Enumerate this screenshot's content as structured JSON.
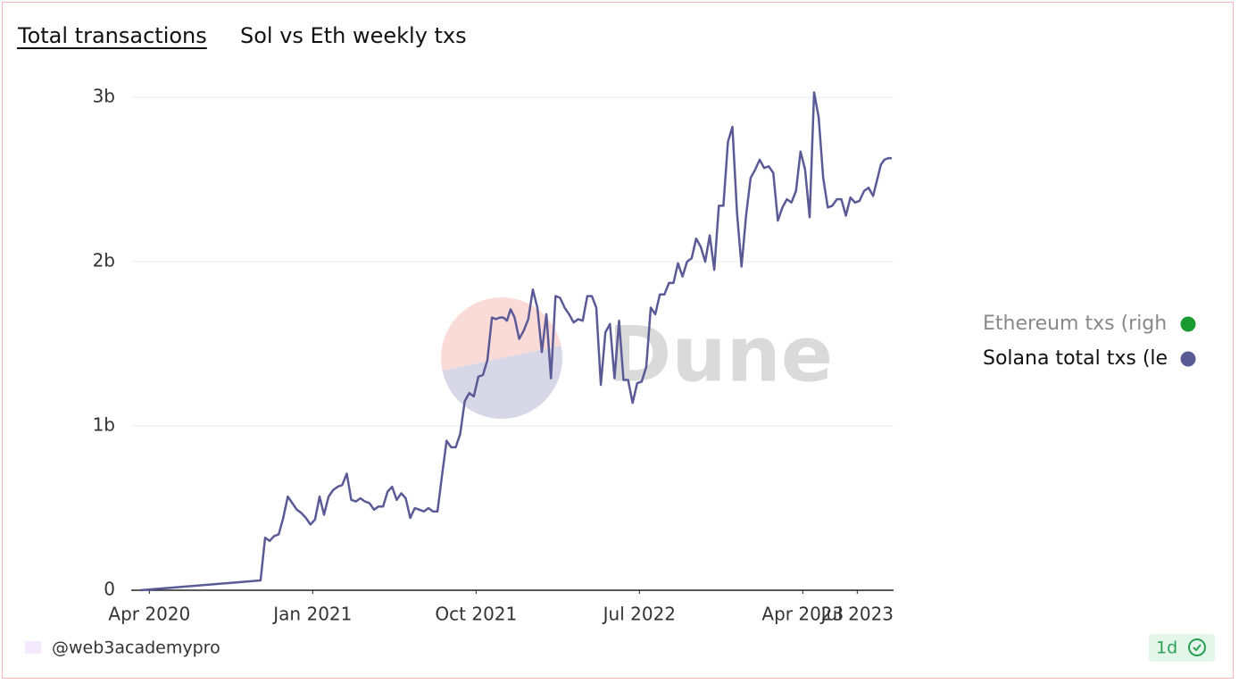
{
  "chart_data": {
    "type": "line",
    "title": "Total transactions",
    "subtitle": "Sol vs Eth weekly txs",
    "watermark": "Dune",
    "x": [
      "2020-03",
      "2020-10",
      "2020-10",
      "2020-10",
      "2020-10",
      "2020-11",
      "2020-11",
      "2020-11",
      "2020-11",
      "2020-12",
      "2020-12",
      "2020-12",
      "2020-12",
      "2021-01",
      "2021-01",
      "2021-01",
      "2021-01",
      "2021-02",
      "2021-02",
      "2021-02",
      "2021-02",
      "2021-03",
      "2021-03",
      "2021-03",
      "2021-03",
      "2021-04",
      "2021-04",
      "2021-04",
      "2021-04",
      "2021-05",
      "2021-05",
      "2021-05",
      "2021-05",
      "2021-06",
      "2021-06",
      "2021-06",
      "2021-06",
      "2021-07",
      "2021-07",
      "2021-07",
      "2021-07",
      "2021-08",
      "2021-08",
      "2021-08",
      "2021-08",
      "2021-09",
      "2021-09",
      "2021-09",
      "2021-09",
      "2021-10",
      "2021-10",
      "2021-10",
      "2021-10",
      "2021-11",
      "2021-11",
      "2021-11",
      "2021-11",
      "2021-11",
      "2021-12",
      "2021-12",
      "2021-12",
      "2021-12",
      "2022-01",
      "2022-01",
      "2022-01",
      "2022-01",
      "2022-02",
      "2022-02",
      "2022-02",
      "2022-02",
      "2022-03",
      "2022-03",
      "2022-03",
      "2022-03",
      "2022-04",
      "2022-04",
      "2022-04",
      "2022-04",
      "2022-05",
      "2022-05",
      "2022-05",
      "2022-05",
      "2022-06",
      "2022-06",
      "2022-06",
      "2022-06",
      "2022-07",
      "2022-07",
      "2022-07",
      "2022-07",
      "2022-08",
      "2022-08",
      "2022-08",
      "2022-08",
      "2022-09",
      "2022-09",
      "2022-09",
      "2022-09",
      "2022-10",
      "2022-10",
      "2022-10",
      "2022-10",
      "2022-11",
      "2022-11",
      "2022-11",
      "2022-11",
      "2022-12",
      "2022-12",
      "2022-12",
      "2022-12",
      "2023-01",
      "2023-01",
      "2023-01",
      "2023-01",
      "2023-02",
      "2023-02",
      "2023-02",
      "2023-02",
      "2023-03",
      "2023-03",
      "2023-03",
      "2023-03",
      "2023-04",
      "2023-04",
      "2023-04",
      "2023-04",
      "2023-05",
      "2023-05",
      "2023-05",
      "2023-05",
      "2023-06",
      "2023-06",
      "2023-06",
      "2023-06",
      "2023-07",
      "2023-07",
      "2023-07",
      "2023-07",
      "2023-08",
      "2023-08",
      "2023-08",
      "2023-08",
      "2023-08"
    ],
    "series": [
      {
        "name": "Ethereum txs (righ",
        "color": "#1a9a2e",
        "axis": "y2"
      },
      {
        "name": "Solana total txs (le",
        "color": "#5a5a96",
        "values": [
          0,
          0.06,
          0.32,
          0.3,
          0.33,
          0.34,
          0.44,
          0.57,
          0.53,
          0.49,
          0.47,
          0.44,
          0.4,
          0.43,
          0.57,
          0.46,
          0.57,
          0.61,
          0.63,
          0.64,
          0.71,
          0.55,
          0.54,
          0.56,
          0.54,
          0.53,
          0.49,
          0.51,
          0.51,
          0.6,
          0.63,
          0.55,
          0.59,
          0.56,
          0.44,
          0.5,
          0.49,
          0.48,
          0.5,
          0.48,
          0.48,
          0.7,
          0.91,
          0.87,
          0.87,
          0.95,
          1.15,
          1.2,
          1.18,
          1.3,
          1.31,
          1.4,
          1.66,
          1.65,
          1.66,
          1.66,
          1.64,
          1.71,
          1.66,
          1.53,
          1.58,
          1.65,
          1.83,
          1.72,
          1.45,
          1.68,
          1.29,
          1.79,
          1.78,
          1.72,
          1.68,
          1.63,
          1.65,
          1.64,
          1.79,
          1.79,
          1.72,
          1.25,
          1.57,
          1.62,
          1.29,
          1.64,
          1.28,
          1.28,
          1.14,
          1.26,
          1.27,
          1.36,
          1.72,
          1.68,
          1.8,
          1.8,
          1.87,
          1.87,
          1.99,
          1.91,
          2.0,
          2.02,
          2.14,
          2.09,
          2.0,
          2.16,
          1.95,
          2.34,
          2.34,
          2.73,
          2.82,
          2.3,
          1.97,
          2.28,
          2.51,
          2.56,
          2.62,
          2.57,
          2.58,
          2.54,
          2.25,
          2.33,
          2.38,
          2.36,
          2.43,
          2.67,
          2.56,
          2.27,
          3.03,
          2.88,
          2.51,
          2.33,
          2.34,
          2.38,
          2.38,
          2.28,
          2.39,
          2.36,
          2.37,
          2.43,
          2.45,
          2.4,
          2.5,
          2.59,
          2.62,
          2.63,
          2.63
        ]
      }
    ],
    "xlim": [
      "2020-03",
      "2023-08"
    ],
    "xticks": [
      {
        "value": "2020-04",
        "label": "Apr 2020"
      },
      {
        "value": "2021-01",
        "label": "Jan 2021"
      },
      {
        "value": "2021-10",
        "label": "Oct 2021"
      },
      {
        "value": "2022-07",
        "label": "Jul 2022"
      },
      {
        "value": "2023-04",
        "label": "Apr 2023"
      },
      {
        "value": "2023-07",
        "label": "Jul 2023"
      }
    ],
    "ylim": [
      0,
      3
    ],
    "yticks": [
      0,
      {
        "value": 1,
        "label": "1b"
      },
      {
        "value": 2,
        "label": "2b"
      },
      {
        "value": 3,
        "label": "3b"
      }
    ],
    "grid": true,
    "legend": "right"
  },
  "footer": {
    "author": "@web3academypro",
    "badge": "1d"
  }
}
